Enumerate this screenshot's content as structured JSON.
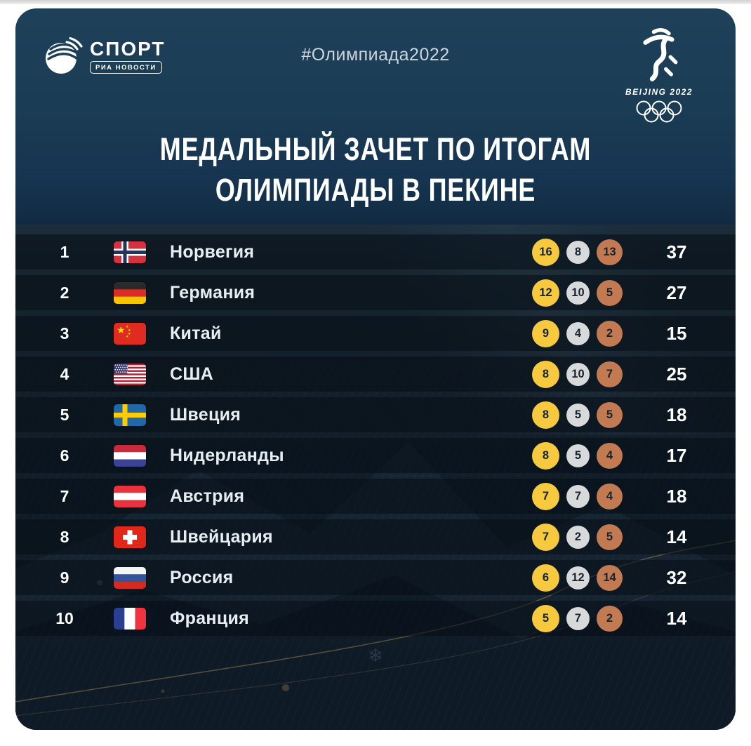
{
  "header": {
    "logo_title": "СПОРТ",
    "logo_badge": "РИА НОВОСТИ",
    "hashtag": "#Олимпиада2022",
    "beijing_text": "BEIJING 2022"
  },
  "title": {
    "line1": "МЕДАЛЬНЫЙ ЗАЧЕТ ПО ИТОГАМ",
    "line2": "ОЛИМПИАДЫ В ПЕКИНЕ"
  },
  "colors": {
    "gold": "#F6C93F",
    "silver": "#D7D9DA",
    "bronze": "#C17A52",
    "card_top": "#1C3E58",
    "row_band": "#0D1B27"
  },
  "chart_data": {
    "type": "table",
    "title": "Медальный зачет по итогам Олимпиады в Пекине",
    "columns": [
      "rank",
      "country",
      "gold",
      "silver",
      "bronze",
      "total"
    ],
    "rows": [
      {
        "rank": "1",
        "country": "Норвегия",
        "flag": "norway",
        "gold": "16",
        "silver": "8",
        "bronze": "13",
        "total": "37"
      },
      {
        "rank": "2",
        "country": "Германия",
        "flag": "germany",
        "gold": "12",
        "silver": "10",
        "bronze": "5",
        "total": "27"
      },
      {
        "rank": "3",
        "country": "Китай",
        "flag": "china",
        "gold": "9",
        "silver": "4",
        "bronze": "2",
        "total": "15"
      },
      {
        "rank": "4",
        "country": "США",
        "flag": "usa",
        "gold": "8",
        "silver": "10",
        "bronze": "7",
        "total": "25"
      },
      {
        "rank": "5",
        "country": "Швеция",
        "flag": "sweden",
        "gold": "8",
        "silver": "5",
        "bronze": "5",
        "total": "18"
      },
      {
        "rank": "6",
        "country": "Нидерланды",
        "flag": "netherlands",
        "gold": "8",
        "silver": "5",
        "bronze": "4",
        "total": "17"
      },
      {
        "rank": "7",
        "country": "Австрия",
        "flag": "austria",
        "gold": "7",
        "silver": "7",
        "bronze": "4",
        "total": "18"
      },
      {
        "rank": "8",
        "country": "Швейцария",
        "flag": "switzerland",
        "gold": "7",
        "silver": "2",
        "bronze": "5",
        "total": "14"
      },
      {
        "rank": "9",
        "country": "Россия",
        "flag": "russia",
        "gold": "6",
        "silver": "12",
        "bronze": "14",
        "total": "32"
      },
      {
        "rank": "10",
        "country": "Франция",
        "flag": "france",
        "gold": "5",
        "silver": "7",
        "bronze": "2",
        "total": "14"
      }
    ]
  }
}
